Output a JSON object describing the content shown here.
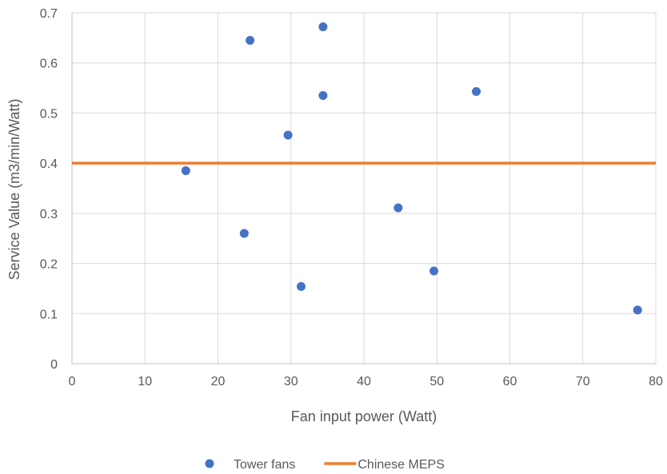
{
  "chart_data": {
    "type": "scatter",
    "title": "",
    "xlabel": "Fan input power (Watt)",
    "ylabel": "Service Value (m3/min/Watt)",
    "xlim": [
      0,
      80
    ],
    "ylim": [
      0,
      0.7
    ],
    "xticks": [
      "0",
      "10",
      "20",
      "30",
      "40",
      "50",
      "60",
      "70",
      "80"
    ],
    "yticks": [
      "0",
      "0.1",
      "0.2",
      "0.3",
      "0.4",
      "0.5",
      "0.6",
      "0.7"
    ],
    "grid": true,
    "legend_position": "bottom",
    "series": [
      {
        "name": "Tower fans",
        "kind": "scatter",
        "color": "#4472C4",
        "points": [
          {
            "x": 15.6,
            "y": 0.385
          },
          {
            "x": 23.6,
            "y": 0.26
          },
          {
            "x": 24.4,
            "y": 0.645
          },
          {
            "x": 29.6,
            "y": 0.456
          },
          {
            "x": 31.4,
            "y": 0.154
          },
          {
            "x": 34.4,
            "y": 0.672
          },
          {
            "x": 34.4,
            "y": 0.535
          },
          {
            "x": 44.7,
            "y": 0.311
          },
          {
            "x": 49.6,
            "y": 0.185
          },
          {
            "x": 55.4,
            "y": 0.543
          },
          {
            "x": 77.5,
            "y": 0.107
          }
        ]
      },
      {
        "name": "Chinese MEPS",
        "kind": "line",
        "color": "#ED7D31",
        "points": [
          {
            "x": 0,
            "y": 0.4
          },
          {
            "x": 80,
            "y": 0.4
          }
        ]
      }
    ]
  }
}
